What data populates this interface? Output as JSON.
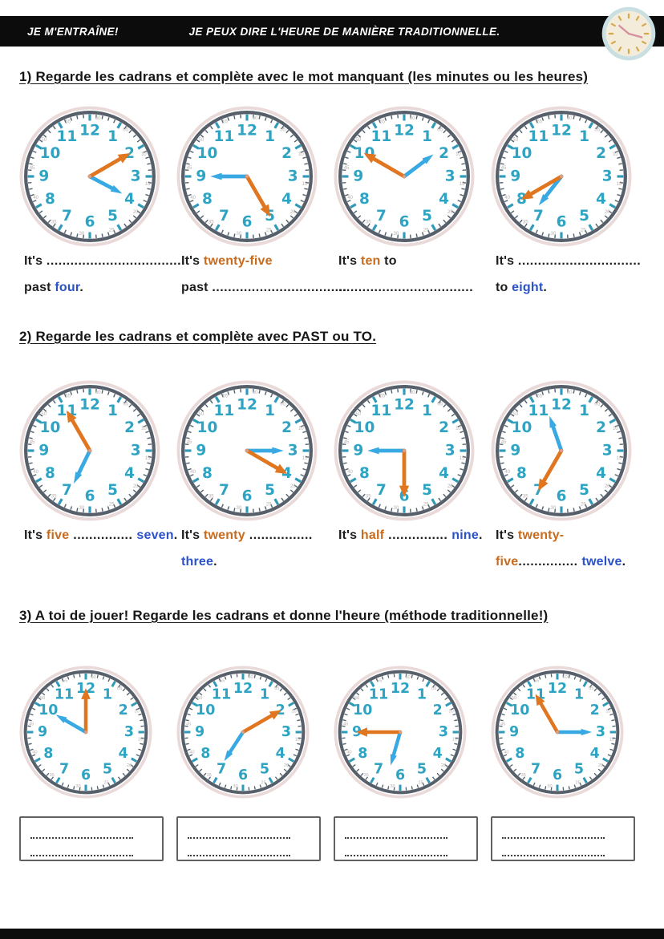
{
  "header": {
    "left_label": "JE M'ENTRAÎNE!",
    "center_label": "JE PEUX DIRE L'HEURE DE MANIÈRE TRADITIONNELLE."
  },
  "colors": {
    "header_bg": "#0c0c0c",
    "minute_hand_orange": "#e0761f",
    "hour_hand_blue": "#38a9e3",
    "clock_numbers_teal": "#2fa3c2",
    "orange_text": "#c76b1e",
    "blue_text": "#2b52c8",
    "clock_ring": "#57606a",
    "clock_outer_pink": "#ead9d9"
  },
  "sections": [
    {
      "title": "1) Regarde les cadrans et complète avec le mot manquant (les minutes ou les heures)",
      "clocks": [
        {
          "minute_deg": 60,
          "hour_deg": 118
        },
        {
          "minute_deg": 150,
          "hour_deg": 270
        },
        {
          "minute_deg": 300,
          "hour_deg": 53
        },
        {
          "minute_deg": 240,
          "hour_deg": 218
        }
      ],
      "captions": [
        [
          [
            {
              "t": "It's ",
              "c": "ink"
            },
            {
              "t": "...................................",
              "c": "dots"
            }
          ],
          [
            {
              "t": "past ",
              "c": "ink"
            },
            {
              "t": "four",
              "c": "blue"
            },
            {
              "t": ".",
              "c": "ink"
            }
          ]
        ],
        [
          [
            {
              "t": "It's ",
              "c": "ink"
            },
            {
              "t": "twenty-five",
              "c": "orange"
            }
          ],
          [
            {
              "t": "past ",
              "c": "ink"
            },
            {
              "t": "..................................",
              "c": "dots"
            }
          ]
        ],
        [
          [
            {
              "t": "It's ",
              "c": "ink"
            },
            {
              "t": "ten",
              "c": "orange"
            },
            {
              "t": " to",
              "c": "ink"
            }
          ],
          [
            {
              "t": "..................................",
              "c": "dots"
            }
          ]
        ],
        [
          [
            {
              "t": "It's  ",
              "c": "ink"
            },
            {
              "t": "...............................",
              "c": "dots"
            }
          ],
          [
            {
              "t": "to ",
              "c": "ink"
            },
            {
              "t": "eight",
              "c": "blue"
            },
            {
              "t": ".",
              "c": "ink"
            }
          ]
        ]
      ]
    },
    {
      "title": "2) Regarde les cadrans et complète avec PAST ou TO.",
      "clocks": [
        {
          "minute_deg": 330,
          "hour_deg": 206
        },
        {
          "minute_deg": 120,
          "hour_deg": 90
        },
        {
          "minute_deg": 180,
          "hour_deg": 270
        },
        {
          "minute_deg": 210,
          "hour_deg": 341
        }
      ],
      "captions": [
        [
          [
            {
              "t": "It's ",
              "c": "ink"
            },
            {
              "t": "five",
              "c": "orange"
            },
            {
              "t": " ............... ",
              "c": "dots"
            },
            {
              "t": "seven",
              "c": "blue"
            },
            {
              "t": ".",
              "c": "ink"
            }
          ]
        ],
        [
          [
            {
              "t": "It's ",
              "c": "ink"
            },
            {
              "t": "twenty",
              "c": "orange"
            },
            {
              "t": " ................",
              "c": "dots"
            }
          ],
          [
            {
              "t": "three",
              "c": "blue"
            },
            {
              "t": ".",
              "c": "ink"
            }
          ]
        ],
        [
          [
            {
              "t": "It's ",
              "c": "ink"
            },
            {
              "t": "half",
              "c": "orange"
            },
            {
              "t": " ............... ",
              "c": "dots"
            },
            {
              "t": "nine",
              "c": "blue"
            },
            {
              "t": ".",
              "c": "ink"
            }
          ]
        ],
        [
          [
            {
              "t": "It's ",
              "c": "ink"
            },
            {
              "t": "twenty-",
              "c": "orange"
            }
          ],
          [
            {
              "t": "five",
              "c": "orange"
            },
            {
              "t": "............... ",
              "c": "dots"
            },
            {
              "t": "twelve",
              "c": "blue"
            },
            {
              "t": ".",
              "c": "ink"
            }
          ]
        ]
      ]
    },
    {
      "title": "3) A toi de jouer! Regarde les cadrans et donne l'heure (méthode traditionnelle!)",
      "clocks": [
        {
          "minute_deg": 0,
          "hour_deg": 300
        },
        {
          "minute_deg": 60,
          "hour_deg": 213
        },
        {
          "minute_deg": 270,
          "hour_deg": 196
        },
        {
          "minute_deg": 330,
          "hour_deg": 90
        }
      ],
      "captions": null
    }
  ],
  "answer_boxes": {
    "count": 4,
    "dotted_lines_per_box": 2
  }
}
